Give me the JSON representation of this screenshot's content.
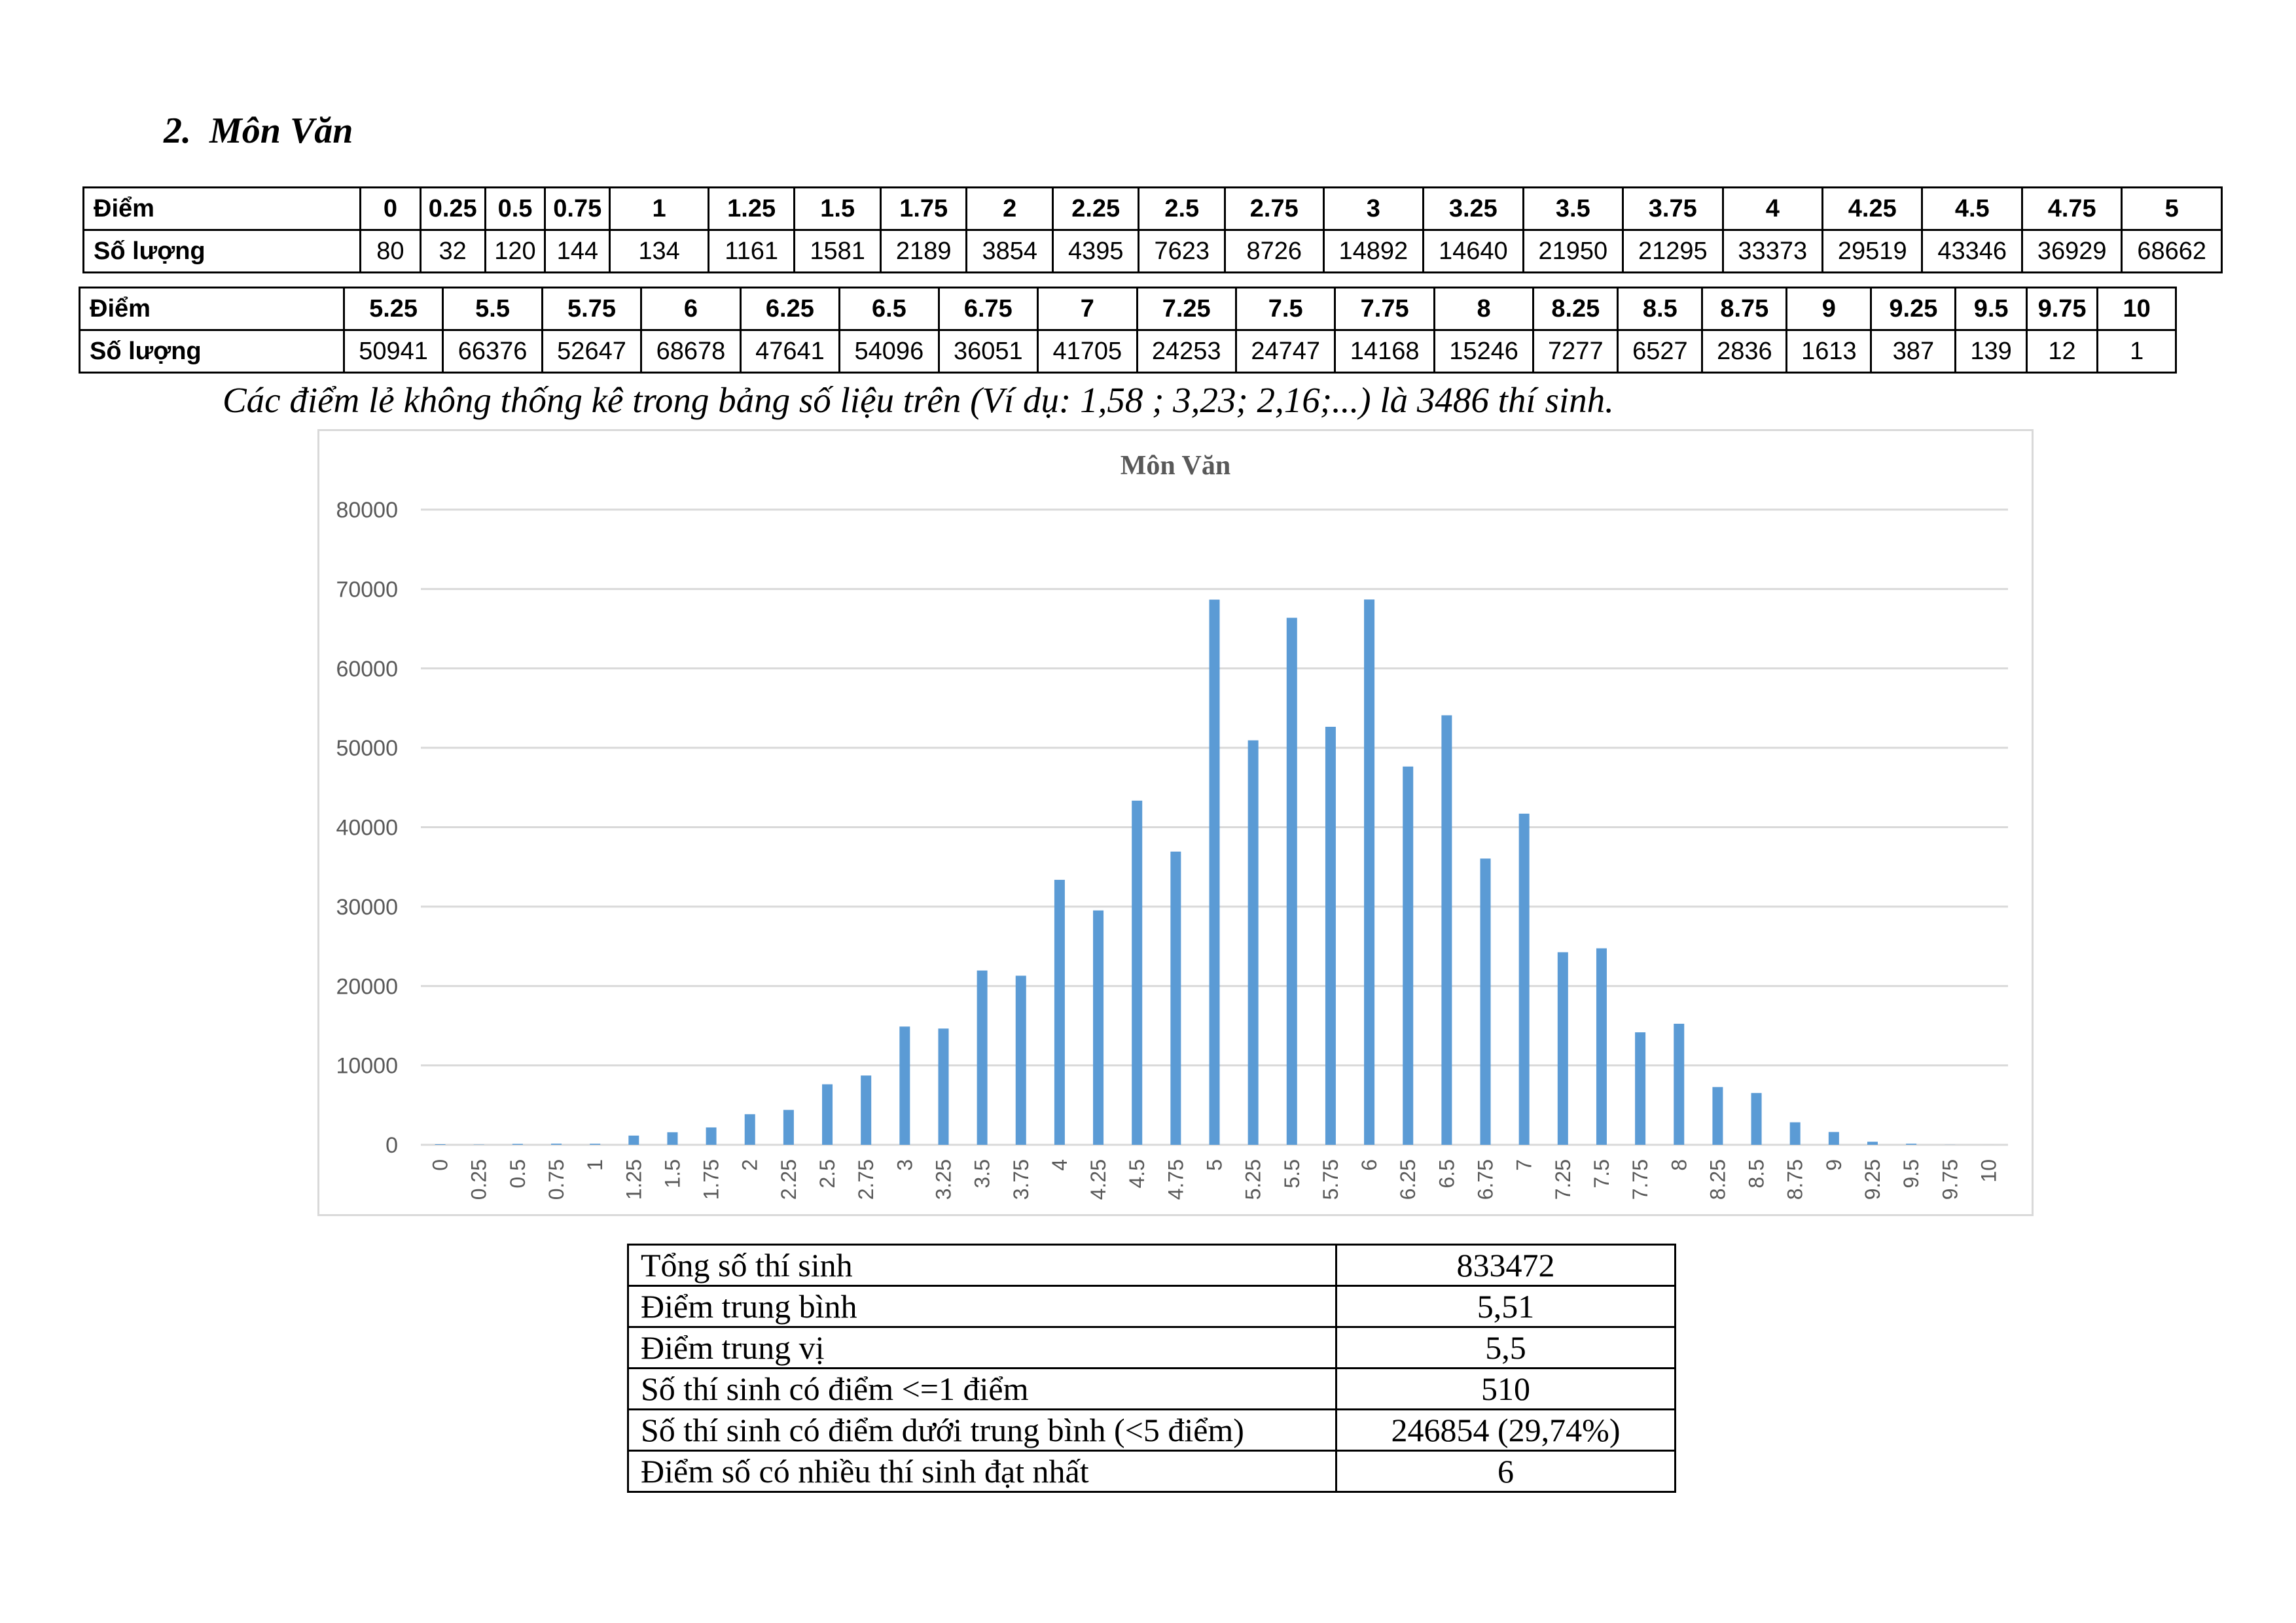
{
  "section": {
    "number": "2.",
    "title": "Môn Văn"
  },
  "score_table": {
    "label_score": "Điểm",
    "label_count": "Số lượng",
    "row1": {
      "scores": [
        "0",
        "0.25",
        "0.5",
        "0.75",
        "1",
        "1.25",
        "1.5",
        "1.75",
        "2",
        "2.25",
        "2.5",
        "2.75",
        "3",
        "3.25",
        "3.5",
        "3.75",
        "4",
        "4.25",
        "4.5",
        "4.75",
        "5"
      ],
      "counts": [
        "80",
        "32",
        "120",
        "144",
        "134",
        "1161",
        "1581",
        "2189",
        "3854",
        "4395",
        "7623",
        "8726",
        "14892",
        "14640",
        "21950",
        "21295",
        "33373",
        "29519",
        "43346",
        "36929",
        "68662"
      ]
    },
    "row2": {
      "scores": [
        "5.25",
        "5.5",
        "5.75",
        "6",
        "6.25",
        "6.5",
        "6.75",
        "7",
        "7.25",
        "7.5",
        "7.75",
        "8",
        "8.25",
        "8.5",
        "8.75",
        "9",
        "9.25",
        "9.5",
        "9.75",
        "10"
      ],
      "counts": [
        "50941",
        "66376",
        "52647",
        "68678",
        "47641",
        "54096",
        "36051",
        "41705",
        "24253",
        "24747",
        "14168",
        "15246",
        "7277",
        "6527",
        "2836",
        "1613",
        "387",
        "139",
        "12",
        "1"
      ]
    }
  },
  "note": "Các điểm lẻ không thống kê trong bảng số liệu trên (Ví dụ: 1,58 ; 3,23; 2,16;...) là 3486 thí sinh.",
  "chart_data": {
    "type": "bar",
    "title": "Môn Văn",
    "xlabel": "",
    "ylabel": "",
    "ylim": [
      0,
      80000
    ],
    "yticks": [
      0,
      10000,
      20000,
      30000,
      40000,
      50000,
      60000,
      70000,
      80000
    ],
    "grid": true,
    "legend": "none",
    "bar_color": "#5b9bd5",
    "categories": [
      "0",
      "0.25",
      "0.5",
      "0.75",
      "1",
      "1.25",
      "1.5",
      "1.75",
      "2",
      "2.25",
      "2.5",
      "2.75",
      "3",
      "3.25",
      "3.5",
      "3.75",
      "4",
      "4.25",
      "4.5",
      "4.75",
      "5",
      "5.25",
      "5.5",
      "5.75",
      "6",
      "6.25",
      "6.5",
      "6.75",
      "7",
      "7.25",
      "7.5",
      "7.75",
      "8",
      "8.25",
      "8.5",
      "8.75",
      "9",
      "9.25",
      "9.5",
      "9.75",
      "10"
    ],
    "values": [
      80,
      32,
      120,
      144,
      134,
      1161,
      1581,
      2189,
      3854,
      4395,
      7623,
      8726,
      14892,
      14640,
      21950,
      21295,
      33373,
      29519,
      43346,
      36929,
      68662,
      50941,
      66376,
      52647,
      68678,
      47641,
      54096,
      36051,
      41705,
      24253,
      24747,
      14168,
      15246,
      7277,
      6527,
      2836,
      1613,
      387,
      139,
      12,
      1
    ]
  },
  "stats": [
    {
      "label": "Tổng số thí sinh",
      "value": "833472"
    },
    {
      "label": "Điểm trung bình",
      "value": "5,51"
    },
    {
      "label": "Điểm trung vị",
      "value": "5,5"
    },
    {
      "label": "Số thí sinh có điểm <=1 điểm",
      "value": "510"
    },
    {
      "label": "Số thí sinh có điểm dưới trung bình (<5 điểm)",
      "value": "246854 (29,74%)"
    },
    {
      "label": "Điểm số có nhiều thí sinh đạt nhất",
      "value": "6"
    }
  ]
}
